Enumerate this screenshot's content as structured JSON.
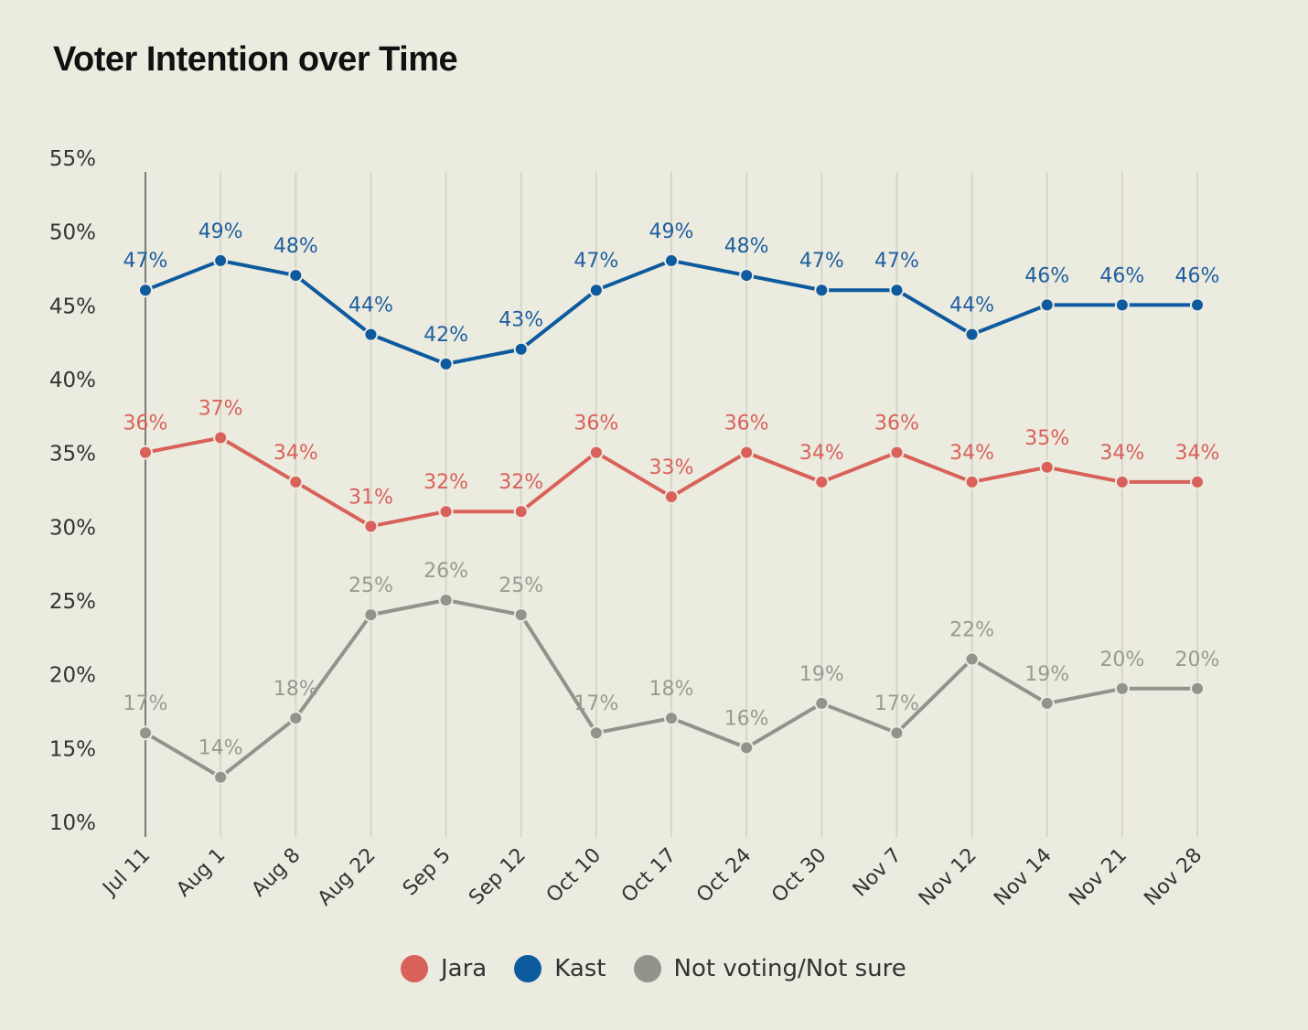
{
  "title": "Voter Intention over Time",
  "chart_data": {
    "type": "line",
    "title": "Voter Intention over Time",
    "xlabel": "",
    "ylabel": "",
    "ylim": [
      10,
      55
    ],
    "yticks": [
      "10%",
      "15%",
      "20%",
      "25%",
      "30%",
      "35%",
      "40%",
      "45%",
      "50%",
      "55%"
    ],
    "ytick_values": [
      10,
      15,
      20,
      25,
      30,
      35,
      40,
      45,
      50,
      55
    ],
    "categories": [
      "Jul 11",
      "Aug 1",
      "Aug 8",
      "Aug 22",
      "Sep 5",
      "Sep 12",
      "Oct 10",
      "Oct 17",
      "Oct 24",
      "Oct 30",
      "Nov 7",
      "Nov 12",
      "Nov 14",
      "Nov 21",
      "Nov 28"
    ],
    "grid": "vertical",
    "legend_placement": "bottom-center",
    "series": [
      {
        "name": "Jara",
        "color": "#d8625a",
        "label_color": "#d8625a",
        "values": [
          36,
          37,
          34,
          31,
          32,
          32,
          36,
          33,
          36,
          34,
          36,
          34,
          35,
          34,
          34
        ]
      },
      {
        "name": "Kast",
        "color": "#0e5a9e",
        "label_color": "#1f5f9f",
        "values": [
          47,
          49,
          48,
          44,
          42,
          43,
          47,
          49,
          48,
          47,
          47,
          44,
          46,
          46,
          46
        ]
      },
      {
        "name": "Not voting/Not sure",
        "color": "#92938a",
        "label_color": "#9a9a90",
        "values": [
          17,
          14,
          18,
          25,
          26,
          25,
          17,
          18,
          16,
          19,
          17,
          22,
          19,
          20,
          20
        ]
      }
    ]
  }
}
